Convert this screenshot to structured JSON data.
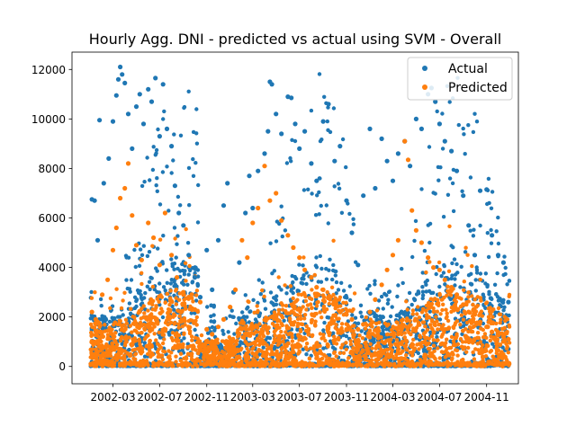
{
  "chart_data": {
    "type": "scatter",
    "title": "Hourly Agg. DNI - predicted vs actual using SVM - Overall",
    "xlabel": "",
    "ylabel": "",
    "x_axis_type": "date",
    "xlim": [
      "2001-11-14",
      "2005-01-23"
    ],
    "ylim": [
      -700,
      12700
    ],
    "x_tick_labels": [
      "2002-03",
      "2002-07",
      "2002-11",
      "2003-03",
      "2003-07",
      "2003-11",
      "2004-03",
      "2004-07",
      "2004-11"
    ],
    "x_tick_dates": [
      "2002-03-01",
      "2002-07-01",
      "2002-11-01",
      "2003-03-01",
      "2003-07-01",
      "2003-11-01",
      "2004-03-01",
      "2004-07-01",
      "2004-11-01"
    ],
    "y_ticks": [
      0,
      2000,
      4000,
      6000,
      8000,
      10000,
      12000
    ],
    "grid": false,
    "legend_position": "top-right",
    "series": [
      {
        "name": "Actual",
        "color": "#1f77b4",
        "points": [
          [
            "2002-01-05",
            6750
          ],
          [
            "2002-01-12",
            6700
          ],
          [
            "2002-01-20",
            5100
          ],
          [
            "2002-01-25",
            9950
          ],
          [
            "2002-02-05",
            7400
          ],
          [
            "2002-02-18",
            8400
          ],
          [
            "2002-03-01",
            9900
          ],
          [
            "2002-03-10",
            10950
          ],
          [
            "2002-03-15",
            11600
          ],
          [
            "2002-03-20",
            12100
          ],
          [
            "2002-03-25",
            11800
          ],
          [
            "2002-04-01",
            11450
          ],
          [
            "2002-04-10",
            10200
          ],
          [
            "2002-04-20",
            8800
          ],
          [
            "2002-05-01",
            10500
          ],
          [
            "2002-05-10",
            11000
          ],
          [
            "2002-05-20",
            9800
          ],
          [
            "2002-06-01",
            11200
          ],
          [
            "2002-06-10",
            10700
          ],
          [
            "2002-06-20",
            11650
          ],
          [
            "2002-07-01",
            9300
          ],
          [
            "2002-07-10",
            11400
          ],
          [
            "2002-07-20",
            9600
          ],
          [
            "2002-08-01",
            8900
          ],
          [
            "2002-08-10",
            7300
          ],
          [
            "2002-08-20",
            6200
          ],
          [
            "2002-09-01",
            5700
          ],
          [
            "2002-09-15",
            4500
          ],
          [
            "2002-10-01",
            3600
          ],
          [
            "2002-10-15",
            2800
          ],
          [
            "2002-11-01",
            4700
          ],
          [
            "2002-11-15",
            3100
          ],
          [
            "2002-12-01",
            5100
          ],
          [
            "2002-12-15",
            6500
          ],
          [
            "2002-12-25",
            7400
          ],
          [
            "2003-01-10",
            3000
          ],
          [
            "2003-01-25",
            4200
          ],
          [
            "2003-02-10",
            6200
          ],
          [
            "2003-02-20",
            7700
          ],
          [
            "2003-03-01",
            6400
          ],
          [
            "2003-03-15",
            7900
          ],
          [
            "2003-04-01",
            8600
          ],
          [
            "2003-04-10",
            9500
          ],
          [
            "2003-04-15",
            11500
          ],
          [
            "2003-04-20",
            11400
          ],
          [
            "2003-05-01",
            10200
          ],
          [
            "2003-05-15",
            9400
          ],
          [
            "2003-06-01",
            10900
          ],
          [
            "2003-06-10",
            10850
          ],
          [
            "2003-06-20",
            9800
          ],
          [
            "2003-07-01",
            8800
          ],
          [
            "2003-07-15",
            9500
          ],
          [
            "2003-08-01",
            8200
          ],
          [
            "2003-08-15",
            7500
          ],
          [
            "2003-09-01",
            9900
          ],
          [
            "2003-09-15",
            10600
          ],
          [
            "2003-10-01",
            8300
          ],
          [
            "2003-10-15",
            8900
          ],
          [
            "2003-11-01",
            6700
          ],
          [
            "2003-11-15",
            5400
          ],
          [
            "2003-12-01",
            4100
          ],
          [
            "2003-12-15",
            6900
          ],
          [
            "2004-01-01",
            9600
          ],
          [
            "2004-01-15",
            7200
          ],
          [
            "2004-02-01",
            9200
          ],
          [
            "2004-02-15",
            8300
          ],
          [
            "2004-03-01",
            7500
          ],
          [
            "2004-03-15",
            8600
          ],
          [
            "2004-04-01",
            9100
          ],
          [
            "2004-04-15",
            8100
          ],
          [
            "2004-05-01",
            10000
          ],
          [
            "2004-05-15",
            9600
          ],
          [
            "2004-06-01",
            11000
          ],
          [
            "2004-06-10",
            11250
          ],
          [
            "2004-06-20",
            10700
          ],
          [
            "2004-07-01",
            9800
          ],
          [
            "2004-07-15",
            9100
          ],
          [
            "2004-08-01",
            8700
          ],
          [
            "2004-08-15",
            7900
          ],
          [
            "2004-09-01",
            6900
          ],
          [
            "2004-09-15",
            5700
          ],
          [
            "2004-10-01",
            4500
          ],
          [
            "2004-10-15",
            7100
          ],
          [
            "2004-11-01",
            7150
          ],
          [
            "2004-11-15",
            5300
          ],
          [
            "2004-12-01",
            4500
          ],
          [
            "2004-12-15",
            4200
          ],
          [
            "2004-12-28",
            2600
          ]
        ]
      },
      {
        "name": "Predicted",
        "color": "#ff7f0e",
        "points": [
          [
            "2002-01-05",
            2200
          ],
          [
            "2002-01-15",
            1900
          ],
          [
            "2002-02-01",
            2900
          ],
          [
            "2002-02-15",
            3500
          ],
          [
            "2002-03-01",
            4700
          ],
          [
            "2002-03-10",
            5600
          ],
          [
            "2002-03-20",
            6800
          ],
          [
            "2002-04-01",
            7200
          ],
          [
            "2002-04-10",
            8200
          ],
          [
            "2002-04-20",
            6100
          ],
          [
            "2002-05-01",
            4900
          ],
          [
            "2002-05-15",
            4300
          ],
          [
            "2002-06-01",
            5800
          ],
          [
            "2002-06-15",
            5200
          ],
          [
            "2002-07-01",
            4100
          ],
          [
            "2002-07-15",
            6200
          ],
          [
            "2002-08-01",
            4500
          ],
          [
            "2002-08-15",
            3600
          ],
          [
            "2002-09-01",
            3000
          ],
          [
            "2002-09-15",
            2800
          ],
          [
            "2002-10-01",
            2300
          ],
          [
            "2002-10-15",
            2600
          ],
          [
            "2002-11-01",
            1500
          ],
          [
            "2002-11-15",
            1300
          ],
          [
            "2002-12-01",
            1600
          ],
          [
            "2002-12-15",
            1900
          ],
          [
            "2003-01-01",
            2400
          ],
          [
            "2003-01-15",
            3100
          ],
          [
            "2003-02-01",
            5100
          ],
          [
            "2003-02-15",
            4400
          ],
          [
            "2003-03-01",
            5800
          ],
          [
            "2003-03-15",
            6400
          ],
          [
            "2003-04-01",
            8100
          ],
          [
            "2003-04-15",
            6700
          ],
          [
            "2003-05-01",
            7000
          ],
          [
            "2003-05-15",
            5900
          ],
          [
            "2003-06-01",
            5300
          ],
          [
            "2003-06-15",
            4800
          ],
          [
            "2003-07-01",
            4400
          ],
          [
            "2003-07-15",
            3900
          ],
          [
            "2003-08-01",
            3600
          ],
          [
            "2003-08-15",
            3200
          ],
          [
            "2003-09-01",
            3100
          ],
          [
            "2003-09-15",
            2800
          ],
          [
            "2003-10-01",
            2600
          ],
          [
            "2003-10-15",
            2200
          ],
          [
            "2003-11-01",
            2100
          ],
          [
            "2003-11-15",
            1900
          ],
          [
            "2003-12-01",
            1500
          ],
          [
            "2003-12-15",
            1700
          ],
          [
            "2004-01-01",
            2200
          ],
          [
            "2004-01-15",
            2700
          ],
          [
            "2004-02-01",
            3300
          ],
          [
            "2004-02-15",
            3900
          ],
          [
            "2004-03-01",
            4500
          ],
          [
            "2004-03-15",
            5100
          ],
          [
            "2004-04-01",
            9100
          ],
          [
            "2004-04-10",
            8350
          ],
          [
            "2004-04-20",
            6300
          ],
          [
            "2004-05-01",
            5500
          ],
          [
            "2004-05-15",
            5000
          ],
          [
            "2004-06-01",
            4400
          ],
          [
            "2004-06-15",
            4000
          ],
          [
            "2004-07-01",
            3900
          ],
          [
            "2004-07-15",
            3500
          ],
          [
            "2004-08-01",
            3200
          ],
          [
            "2004-08-15",
            2900
          ],
          [
            "2004-09-01",
            2500
          ],
          [
            "2004-09-15",
            2200
          ],
          [
            "2004-10-01",
            2100
          ],
          [
            "2004-10-15",
            1800
          ],
          [
            "2004-11-01",
            1600
          ],
          [
            "2004-11-15",
            1400
          ],
          [
            "2004-12-01",
            1300
          ],
          [
            "2004-12-15",
            1200
          ],
          [
            "2004-12-28",
            1100
          ]
        ]
      }
    ]
  }
}
